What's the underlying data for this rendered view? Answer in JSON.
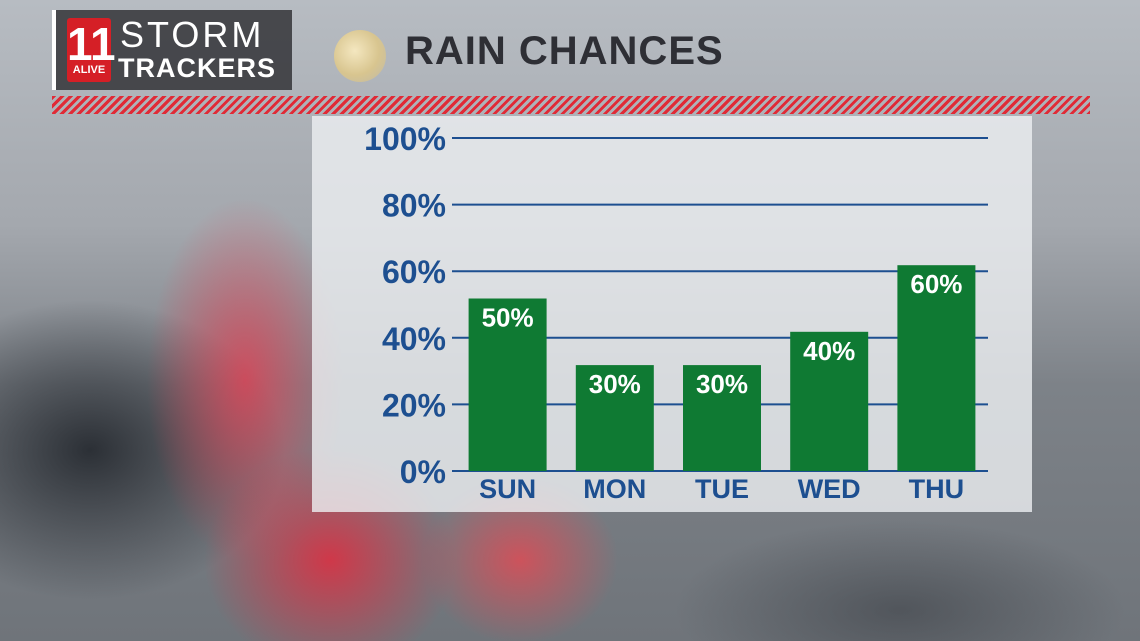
{
  "header": {
    "logo_number": "11",
    "logo_alive": "ALIVE",
    "logo_line1": "STORM",
    "logo_line2": "TRACKERS",
    "title": "RAIN CHANCES"
  },
  "colors": {
    "bar": "#0f7a33",
    "tick_text": "#1d4f90",
    "gridline": "#1d4f90",
    "accent_red": "#e02a36"
  },
  "chart_data": {
    "type": "bar",
    "title": "RAIN CHANCES",
    "categories": [
      "SUN",
      "MON",
      "TUE",
      "WED",
      "THU"
    ],
    "values": [
      50,
      30,
      30,
      40,
      60
    ],
    "bar_labels": [
      "50%",
      "30%",
      "30%",
      "40%",
      "60%"
    ],
    "y_ticks": [
      0,
      20,
      40,
      60,
      80,
      100
    ],
    "y_tick_labels": [
      "0%",
      "20%",
      "40%",
      "60%",
      "80%",
      "100%"
    ],
    "ylim": [
      0,
      100
    ],
    "xlabel": "",
    "ylabel": "",
    "grid": true,
    "legend": "none"
  }
}
